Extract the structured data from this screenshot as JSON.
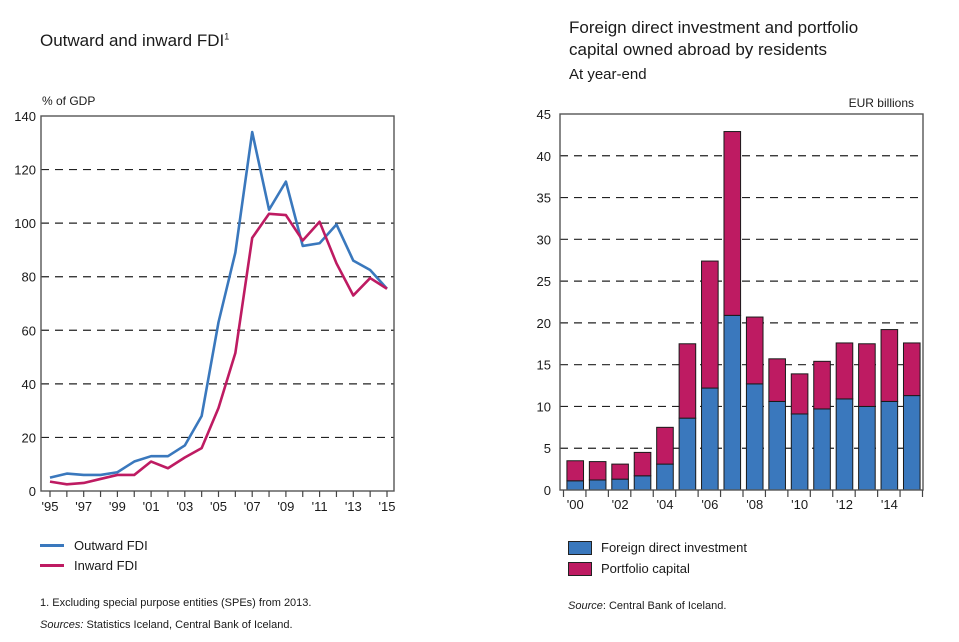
{
  "chart_data": [
    {
      "type": "line",
      "title": "Outward and inward FDI",
      "title_footnote_marker": "1",
      "ylabel": "% of GDP",
      "xlabel": "",
      "ylim": [
        0,
        140
      ],
      "yticks": [
        0,
        20,
        40,
        60,
        80,
        100,
        120,
        140
      ],
      "x": [
        1995,
        1996,
        1997,
        1998,
        1999,
        2000,
        2001,
        2002,
        2003,
        2004,
        2005,
        2006,
        2007,
        2008,
        2009,
        2010,
        2011,
        2012,
        2013,
        2014,
        2015
      ],
      "xtick_labels": [
        "'95",
        "'97",
        "'99",
        "'01",
        "'03",
        "'05",
        "'07",
        "'09",
        "'11",
        "'13",
        "'15"
      ],
      "grid": true,
      "legend_position": "bottom",
      "series": [
        {
          "name": "Outward FDI",
          "color": "#3a78bd",
          "values": [
            5,
            6.5,
            6,
            6,
            7,
            11,
            13,
            13,
            17,
            28,
            63,
            89,
            134,
            105,
            115.5,
            91.5,
            92.5,
            99.5,
            86,
            82.5,
            75.5
          ]
        },
        {
          "name": "Inward FDI",
          "color": "#be1b62",
          "values": [
            3.5,
            2.5,
            3,
            4.5,
            6,
            6,
            11,
            8.5,
            12.5,
            16,
            31,
            51.5,
            94.5,
            103.5,
            103,
            93.5,
            100.5,
            85,
            73,
            79.5,
            75.5
          ]
        }
      ],
      "footnote": "1. Excluding special purpose entities (SPEs) from 2013.",
      "source_label": "Sources:",
      "source_text": " Statistics Iceland, Central Bank of Iceland."
    },
    {
      "type": "bar",
      "stacked": true,
      "title": "Foreign direct investment and portfolio capital owned abroad by residents",
      "title_lines": [
        "Foreign direct investment and portfolio",
        "capital owned abroad by residents"
      ],
      "subtitle": "At year-end",
      "ylabel": "EUR billions",
      "xlabel": "",
      "ylim": [
        0,
        45
      ],
      "yticks": [
        0,
        5,
        10,
        15,
        20,
        25,
        30,
        35,
        40,
        45
      ],
      "categories": [
        "2000",
        "2001",
        "2002",
        "2003",
        "2004",
        "2005",
        "2006",
        "2007",
        "2008",
        "2009",
        "2010",
        "2011",
        "2012",
        "2013",
        "2014",
        "2015"
      ],
      "xtick_labels": [
        "'00",
        "'02",
        "'04",
        "'06",
        "'08",
        "'10",
        "'12",
        "'14"
      ],
      "grid": true,
      "legend_position": "bottom",
      "series": [
        {
          "name": "Foreign direct investment",
          "color": "#3a78bd",
          "values": [
            1.1,
            1.2,
            1.3,
            1.7,
            3.1,
            8.6,
            12.2,
            20.9,
            12.7,
            10.6,
            9.1,
            9.7,
            10.9,
            10.0,
            10.6,
            11.3
          ]
        },
        {
          "name": "Portfolio capital",
          "color": "#be1b62",
          "values": [
            2.4,
            2.2,
            1.8,
            2.8,
            4.4,
            8.9,
            15.2,
            22.0,
            8.0,
            5.1,
            4.8,
            5.7,
            6.7,
            7.5,
            8.6,
            6.3
          ]
        }
      ],
      "source_label": "Source",
      "source_text": ": Central Bank of Iceland."
    }
  ]
}
